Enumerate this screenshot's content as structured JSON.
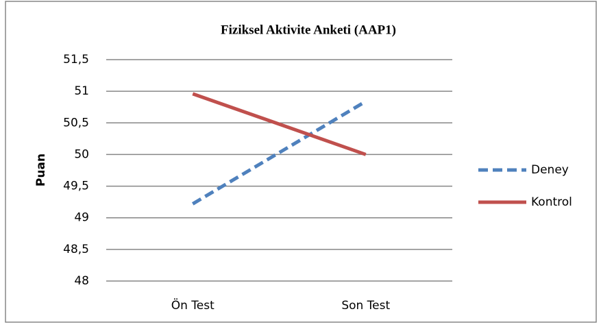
{
  "chart_data": {
    "type": "line",
    "title": "Fiziksel Aktivite Anketi (AAP1)",
    "y_label": "Puan",
    "categories": [
      "Ön Test",
      "Son Test"
    ],
    "series": [
      {
        "name": "Deney",
        "color": "#4f81bd",
        "dash": true,
        "values": [
          49.22,
          50.84
        ]
      },
      {
        "name": "Kontrol",
        "color": "#c0504d",
        "dash": false,
        "values": [
          50.96,
          50.0
        ]
      }
    ],
    "ylim": [
      48,
      51.5
    ],
    "yticks": [
      48,
      {
        "value": 48.5,
        "label": "48,5"
      },
      49,
      {
        "value": 49.5,
        "label": "49,5"
      },
      50,
      {
        "value": 50.5,
        "label": "50,5"
      },
      51,
      {
        "value": 51.5,
        "label": "51,5"
      }
    ],
    "grid": true,
    "legend": "right"
  }
}
